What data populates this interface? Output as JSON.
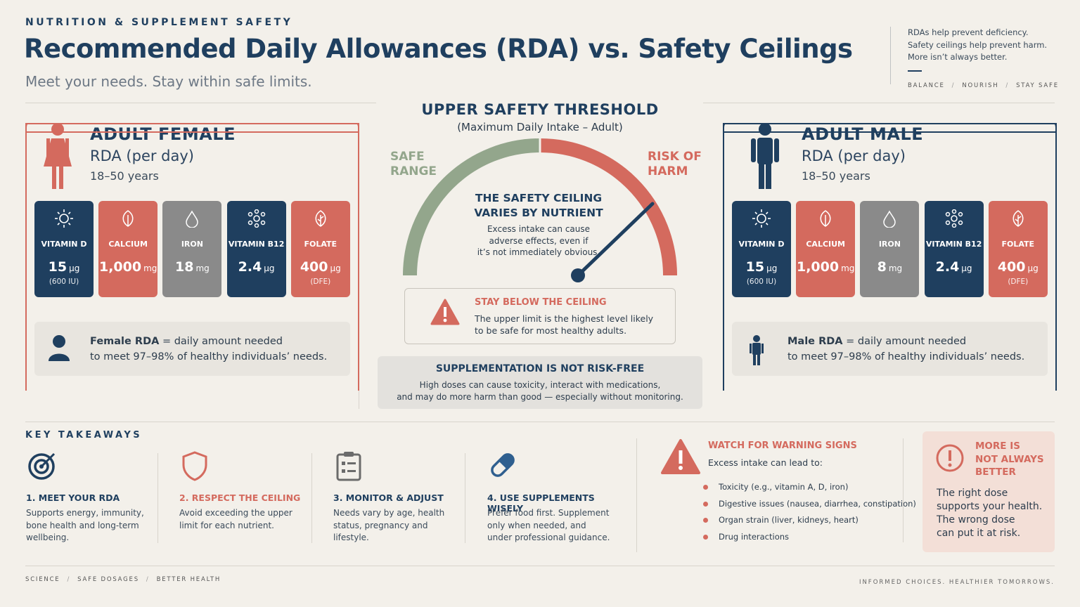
{
  "header": {
    "kicker": "NUTRITION & SUPPLEMENT SAFETY",
    "title": "Recommended Daily Allowances (RDA) vs. Safety Ceilings",
    "subtitle": "Meet your needs. Stay within safe limits.",
    "notes": [
      "RDAs help prevent deficiency.",
      "Safety ceilings help prevent harm.",
      "More isn’t always better."
    ],
    "tags": [
      "BALANCE",
      "NOURISH",
      "STAY SAFE"
    ]
  },
  "panels": [
    {
      "title": "ADULT FEMALE",
      "subtitle": "RDA (per day)",
      "age": "18–50 years",
      "accent": "#d46a5e",
      "nutrients": [
        {
          "name": "VITAMIN D",
          "amount": "15",
          "unit": "µg",
          "note": "(600 IU)",
          "color": "#1f3f5f"
        },
        {
          "name": "CALCIUM",
          "amount": "1,000",
          "unit": "mg",
          "color": "#d46a5e"
        },
        {
          "name": "IRON",
          "amount": "18",
          "unit": "mg",
          "color": "#8a8a8a"
        },
        {
          "name": "VITAMIN B12",
          "amount": "2.4",
          "unit": "µg",
          "color": "#1f3f5f"
        },
        {
          "name": "FOLATE",
          "amount": "400",
          "unit": "µg",
          "note": "(DFE)",
          "color": "#d46a5e"
        }
      ],
      "note_bold": "Female RDA",
      "note_line1": "= daily amount needed",
      "note_line2": "to meet 97–98% of healthy individuals’ needs."
    },
    {
      "title": "ADULT MALE",
      "subtitle": "RDA (per day)",
      "age": "18–50 years",
      "accent": "#1f3f5f",
      "nutrients": [
        {
          "name": "VITAMIN D",
          "amount": "15",
          "unit": "µg",
          "note": "(600 IU)",
          "color": "#1f3f5f"
        },
        {
          "name": "CALCIUM",
          "amount": "1,000",
          "unit": "mg",
          "color": "#d46a5e"
        },
        {
          "name": "IRON",
          "amount": "8",
          "unit": "mg",
          "color": "#8a8a8a"
        },
        {
          "name": "VITAMIN B12",
          "amount": "2.4",
          "unit": "µg",
          "color": "#1f3f5f"
        },
        {
          "name": "FOLATE",
          "amount": "400",
          "unit": "µg",
          "note": "(DFE)",
          "color": "#d46a5e"
        }
      ],
      "note_bold": "Male RDA",
      "note_line1": "= daily amount needed",
      "note_line2": "to meet 97–98% of healthy individuals’ needs."
    }
  ],
  "gauge": {
    "title": "UPPER SAFETY THRESHOLD",
    "subtitle": "(Maximum Daily Intake – Adult)",
    "safe_label": [
      "SAFE",
      "RANGE"
    ],
    "risk_label": [
      "RISK OF",
      "HARM"
    ],
    "center_title": [
      "THE SAFETY CEILING",
      "VARIES BY NUTRIENT"
    ],
    "center_text": [
      "Excess intake can cause",
      "adverse effects, even if",
      "it’s not immediately obvious."
    ],
    "alert_title": "STAY BELOW THE CEILING",
    "alert_text": [
      "The upper limit is the highest level likely",
      "to be safe for most healthy adults."
    ],
    "warning_title": "SUPPLEMENTATION IS NOT RISK-FREE",
    "warning_text": [
      "High doses can cause toxicity, interact with medications,",
      "and may do more harm than good — especially without monitoring."
    ]
  },
  "takeaways": {
    "title": "KEY TAKEAWAYS",
    "items": [
      {
        "title": "1. MEET YOUR RDA",
        "text": [
          "Supports energy, immunity,",
          "bone health and long-term",
          "wellbeing."
        ],
        "color": "#1f3f5f"
      },
      {
        "title": "2. RESPECT THE CEILING",
        "text": [
          "Avoid exceeding the upper",
          "limit for each nutrient."
        ],
        "color": "#d46a5e"
      },
      {
        "title": "3. MONITOR & ADJUST",
        "text": [
          "Needs vary by age, health",
          "status, pregnancy and",
          "lifestyle."
        ],
        "color": "#1f3f5f"
      },
      {
        "title": "4. USE SUPPLEMENTS WISELY",
        "text": [
          "Prefer food first. Supplement",
          "only when needed, and",
          "under professional guidance."
        ],
        "color": "#1f3f5f"
      }
    ],
    "signs_title": "WATCH FOR WARNING SIGNS",
    "signs_subtitle": "Excess intake can lead to:",
    "signs": [
      "Toxicity (e.g., vitamin A, D, iron)",
      "Digestive issues (nausea, diarrhea, constipation)",
      "Organ strain (liver, kidneys, heart)",
      "Drug interactions"
    ],
    "more_title": [
      "MORE IS",
      "NOT ALWAYS",
      "BETTER"
    ],
    "more_text": [
      "The right dose",
      "supports your health.",
      "The wrong dose",
      "can put it at risk."
    ]
  },
  "footer": {
    "tags": [
      "SCIENCE",
      "SAFE DOSAGES",
      "BETTER HEALTH"
    ],
    "tagline": "INFORMED CHOICES. HEALTHIER TOMORROWS."
  }
}
